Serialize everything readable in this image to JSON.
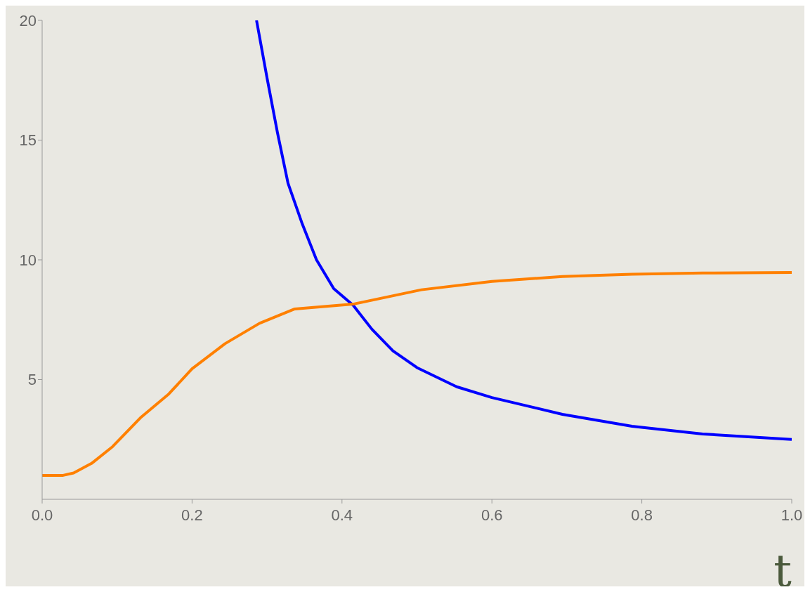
{
  "chart_data": {
    "type": "line",
    "xlabel": "t",
    "series": [
      {
        "color": "#0000ff",
        "x": [
          0.286,
          0.3,
          0.314,
          0.328,
          0.347,
          0.366,
          0.389,
          0.415,
          0.44,
          0.468,
          0.5,
          0.553,
          0.6,
          0.694,
          0.787,
          0.881,
          1.0
        ],
        "values": [
          20,
          17.6,
          15.3,
          13.2,
          11.5,
          10.0,
          8.8,
          8.1,
          7.1,
          6.2,
          5.5,
          4.7,
          4.25,
          3.55,
          3.05,
          2.73,
          2.5
        ]
      },
      {
        "color": "#ff8000",
        "x": [
          0,
          0.028,
          0.042,
          0.066,
          0.094,
          0.131,
          0.169,
          0.2,
          0.244,
          0.29,
          0.337,
          0.415,
          0.506,
          0.6,
          0.694,
          0.787,
          0.881,
          1.0
        ],
        "values": [
          1.0,
          1.0,
          1.1,
          1.5,
          2.2,
          3.4,
          4.4,
          5.45,
          6.5,
          7.35,
          7.95,
          8.15,
          8.75,
          9.1,
          9.3,
          9.4,
          9.45,
          9.47
        ]
      }
    ],
    "xlim": [
      0,
      1
    ],
    "xticks": [
      {
        "value": 0,
        "label": "0.0"
      },
      0.2,
      0.4,
      0.6,
      0.8,
      {
        "value": 1,
        "label": "1.0"
      }
    ],
    "ylim": [
      0,
      20
    ],
    "yticks": [
      5,
      10,
      15,
      20
    ],
    "grid": false,
    "legend": false,
    "marker": "none",
    "line_style": "solid"
  }
}
